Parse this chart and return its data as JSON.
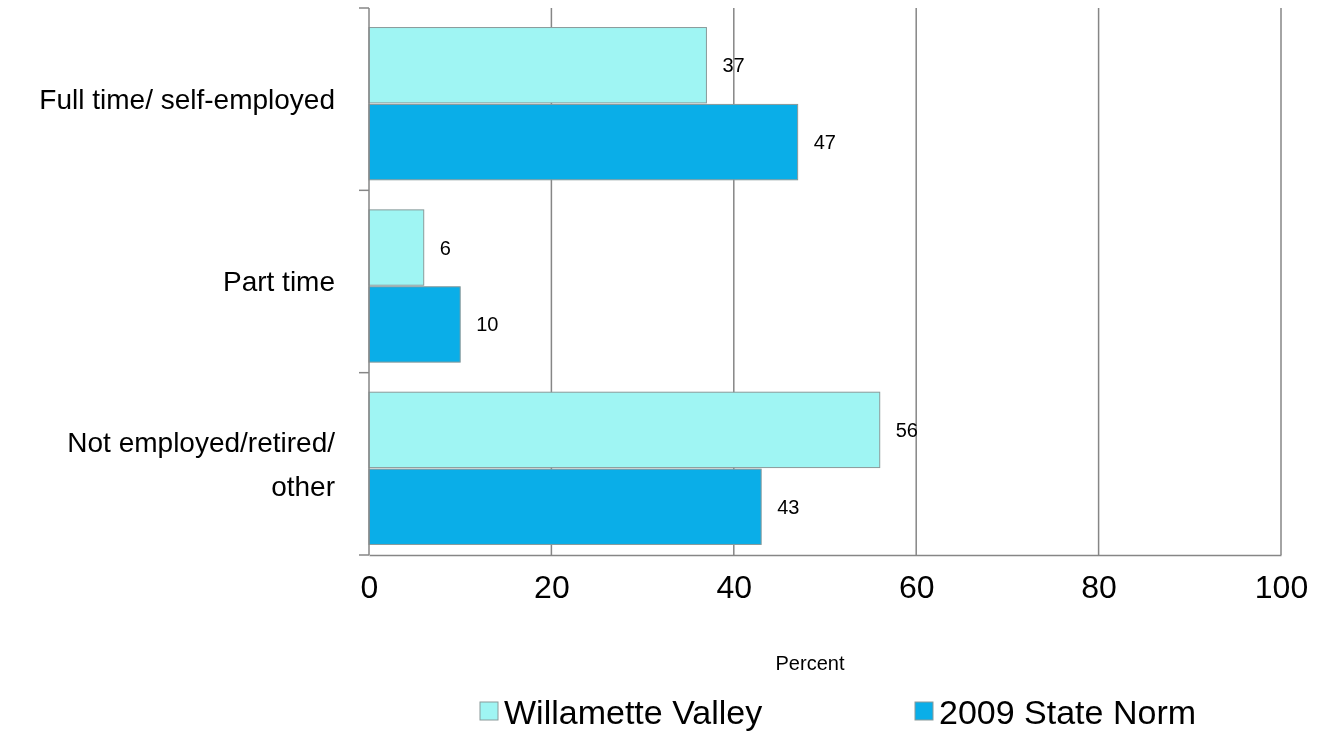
{
  "chart_data": {
    "type": "bar",
    "orientation": "horizontal",
    "xlabel": "Percent",
    "categories": [
      "Full time/ self-employed",
      "Part time",
      "Not employed/retired/ other"
    ],
    "series": [
      {
        "name": "Willamette Valley",
        "color": "#9ff5f3",
        "values": [
          37,
          6,
          56
        ]
      },
      {
        "name": "2009 State Norm",
        "color": "#0aaee8",
        "values": [
          47,
          10,
          43
        ]
      }
    ],
    "xlim": [
      0,
      100
    ],
    "xticks": [
      0,
      20,
      40,
      60,
      80,
      100
    ],
    "grid": "x",
    "legend": "bottom",
    "data_labels": true
  }
}
